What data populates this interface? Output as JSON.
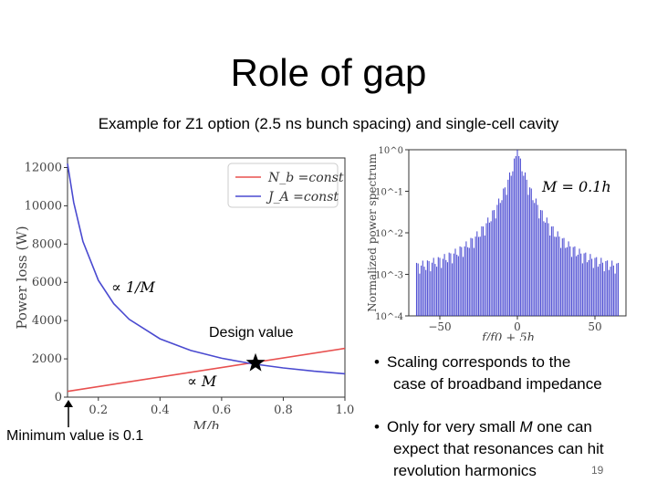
{
  "slide": {
    "title": "Role of gap",
    "subtitle": "Example for Z1 option (2.5 ns bunch spacing) and single-cell cavity",
    "page_number": "19",
    "design_value_label": "Design value",
    "min_value_label": "Minimum value is 0.1",
    "bullets": [
      {
        "text_parts": [
          "Scaling corresponds to the",
          "case of broadband impedance"
        ]
      },
      {
        "text_parts": [
          "Only for very small ",
          "M",
          " one can",
          "expect that resonances can hit",
          "revolution harmonics"
        ]
      }
    ],
    "annot_inv_m": "∝ 1/M",
    "annot_m": "∝ M",
    "annot_m_equals": "M = 0.1h"
  },
  "chart_data": [
    {
      "type": "line",
      "xlabel": "M/h",
      "ylabel": "Power loss (W)",
      "xlim": [
        0.1,
        1.0
      ],
      "ylim": [
        0,
        12500
      ],
      "xticks": [
        "0.2",
        "0.4",
        "0.6",
        "0.8",
        "1.0"
      ],
      "yticks": [
        "0",
        "2000",
        "4000",
        "6000",
        "8000",
        "10000",
        "12000"
      ],
      "grid": false,
      "legend_position": "top-right",
      "series": [
        {
          "name": "N_b =const",
          "color": "#e8504f",
          "x": [
            0.1,
            1.0
          ],
          "y": [
            300,
            2550
          ]
        },
        {
          "name": "J_A =const",
          "color": "#4a4ad0",
          "x": [
            0.1,
            0.12,
            0.15,
            0.2,
            0.25,
            0.3,
            0.4,
            0.5,
            0.6,
            0.7,
            0.8,
            0.9,
            1.0
          ],
          "y": [
            12200,
            10167,
            8133,
            6100,
            4880,
            4067,
            3050,
            2440,
            2033,
            1743,
            1525,
            1356,
            1220
          ]
        }
      ],
      "marker": {
        "type": "star",
        "x": 0.71,
        "y": 1780
      }
    },
    {
      "type": "bar",
      "xlabel": "f/f0 + 5h",
      "ylabel": "Normalized power spectrum",
      "xlim": [
        -70,
        70
      ],
      "ylim_log10": [
        -4,
        0
      ],
      "xticks": [
        "−50",
        "0",
        "50"
      ],
      "yticks": [
        "10^0",
        "10^-1",
        "10^-2",
        "10^-3",
        "10^-4"
      ],
      "color": "#3333cc"
    }
  ]
}
